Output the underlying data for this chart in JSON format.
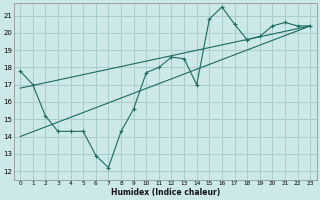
{
  "xlabel": "Humidex (Indice chaleur)",
  "background_color": "#cde8e8",
  "grid_color": "#aacccc",
  "line_color": "#1a6b60",
  "xlim": [
    -0.5,
    23.5
  ],
  "ylim": [
    11.5,
    21.7
  ],
  "xticks": [
    0,
    1,
    2,
    3,
    4,
    5,
    6,
    7,
    8,
    9,
    10,
    11,
    12,
    13,
    14,
    15,
    16,
    17,
    18,
    19,
    20,
    21,
    22,
    23
  ],
  "yticks": [
    12,
    13,
    14,
    15,
    16,
    17,
    18,
    19,
    20,
    21
  ],
  "line1_x": [
    0,
    1,
    2,
    3,
    4,
    5,
    6,
    7,
    8,
    9,
    10,
    11,
    12,
    13,
    14,
    15,
    16,
    17,
    18,
    19,
    20,
    21,
    22,
    23
  ],
  "line1_y": [
    17.8,
    17.0,
    15.2,
    14.3,
    14.3,
    14.3,
    12.9,
    12.2,
    14.3,
    15.6,
    17.7,
    18.0,
    18.6,
    18.5,
    17.0,
    20.8,
    21.5,
    20.5,
    19.6,
    19.8,
    20.4,
    20.6,
    20.4,
    20.4
  ],
  "trend1_x0": 0,
  "trend1_y0": 14.0,
  "trend1_x1": 23,
  "trend1_y1": 20.4,
  "trend2_x0": 0,
  "trend2_y0": 16.8,
  "trend2_x1": 23,
  "trend2_y1": 20.4
}
